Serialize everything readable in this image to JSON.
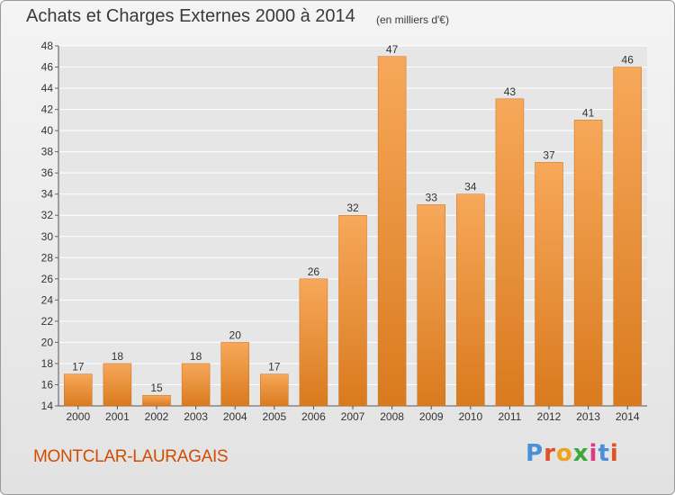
{
  "chart_data": {
    "type": "bar",
    "title": "Achats et Charges Externes 2000 à 2014",
    "subtitle": "(en milliers d'€)",
    "categories": [
      "2000",
      "2001",
      "2002",
      "2003",
      "2004",
      "2005",
      "2006",
      "2007",
      "2008",
      "2009",
      "2010",
      "2011",
      "2012",
      "2013",
      "2014"
    ],
    "values": [
      17,
      18,
      15,
      18,
      20,
      17,
      26,
      32,
      47,
      33,
      34,
      43,
      37,
      41,
      46
    ],
    "ylim": [
      14,
      48
    ],
    "yticks": [
      14,
      16,
      18,
      20,
      22,
      24,
      26,
      28,
      30,
      32,
      34,
      36,
      38,
      40,
      42,
      44,
      46,
      48
    ],
    "grid": true,
    "bar_color": "#f28a24"
  },
  "footer": {
    "commune": "MONTCLAR-LAURAGAIS",
    "brand_letters": [
      "P",
      "r",
      "o",
      "x",
      "i",
      "t",
      "i"
    ]
  }
}
